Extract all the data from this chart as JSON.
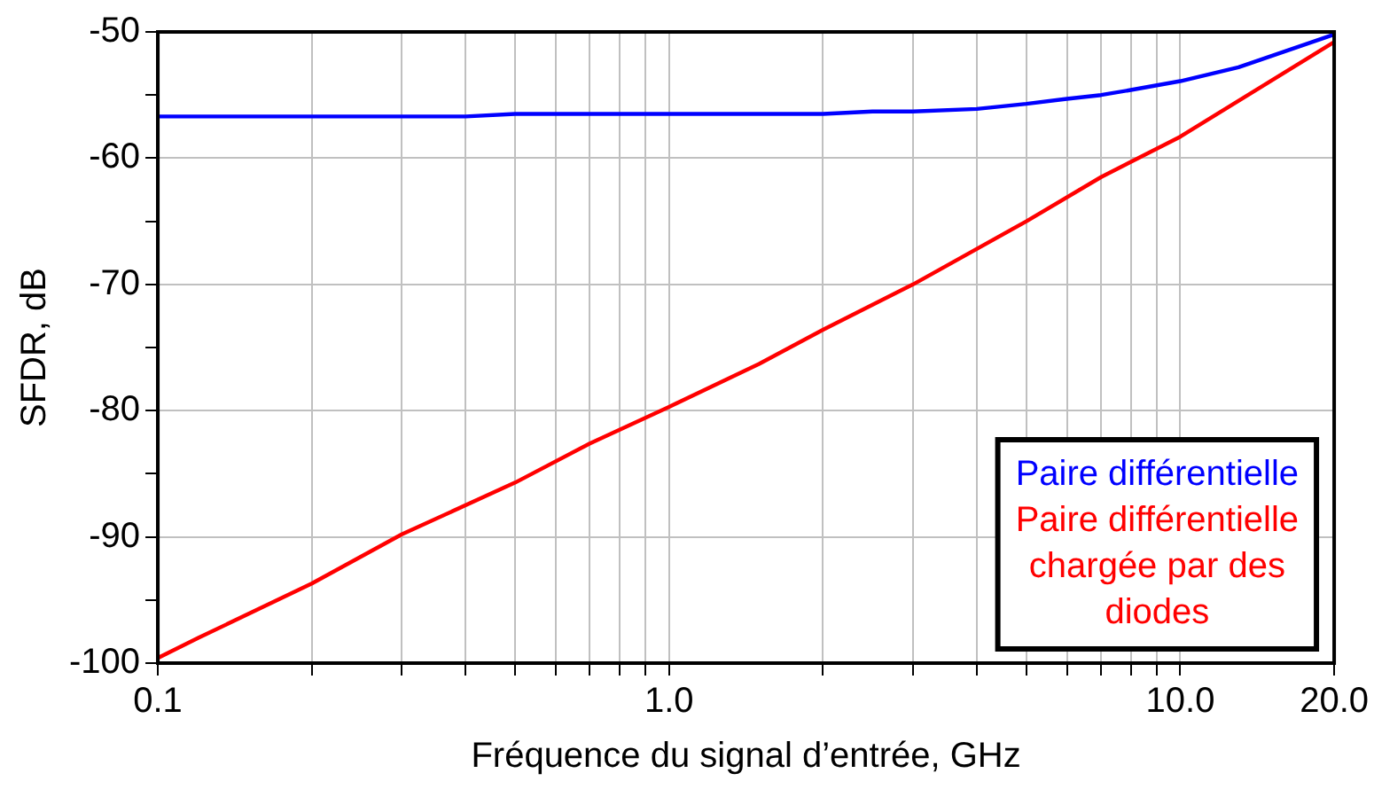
{
  "chart_data": {
    "type": "line",
    "xlabel": "Fréquence du signal d’entrée, GHz",
    "ylabel": "SFDR, dB",
    "log": "x",
    "grid": true,
    "legend": "bottom right",
    "marker": "none",
    "line_style": "solid",
    "xlim": [
      0.1,
      20
    ],
    "xticks": [
      0.1,
      {
        "value": 0.2,
        "label": null
      },
      {
        "value": 0.3,
        "label": null
      },
      {
        "value": 0.4,
        "label": null
      },
      {
        "value": 0.5,
        "label": null
      },
      {
        "value": 0.6,
        "label": null
      },
      {
        "value": 0.7,
        "label": null
      },
      {
        "value": 0.8,
        "label": null
      },
      {
        "value": 0.9,
        "label": null
      },
      {
        "value": 1,
        "label": "1.0"
      },
      {
        "value": 2,
        "label": null
      },
      {
        "value": 3,
        "label": null
      },
      {
        "value": 4,
        "label": null
      },
      {
        "value": 5,
        "label": null
      },
      {
        "value": 6,
        "label": null
      },
      {
        "value": 7,
        "label": null
      },
      {
        "value": 8,
        "label": null
      },
      {
        "value": 9,
        "label": null
      },
      {
        "value": 10,
        "label": "10.0"
      },
      {
        "value": 20,
        "label": "20.0"
      }
    ],
    "ylim": [
      -100,
      -50
    ],
    "yticks": [
      -100,
      {
        "value": -95,
        "label": null
      },
      -90,
      {
        "value": -85,
        "label": null
      },
      -80,
      {
        "value": -75,
        "label": null
      },
      -70,
      {
        "value": -65,
        "label": null
      },
      -60,
      {
        "value": -55,
        "label": null
      },
      -50
    ],
    "series": [
      {
        "name": "Paire différentielle",
        "color": "#0000ff",
        "x": [
          0.1,
          0.2,
          0.4,
          0.5,
          1,
          2,
          2.5,
          3,
          4,
          5,
          6,
          7,
          8,
          10,
          13,
          20
        ],
        "values": [
          -56.7,
          -56.7,
          -56.7,
          -56.5,
          -56.5,
          -56.5,
          -56.3,
          -56.3,
          -56.1,
          -55.7,
          -55.3,
          -55,
          -54.6,
          -53.9,
          -52.8,
          -50.2
        ]
      },
      {
        "name": "Paire différentielle chargée par des diodes",
        "color": "#ff0000",
        "x": [
          0.1,
          0.12,
          0.2,
          0.3,
          0.5,
          0.7,
          1,
          1.5,
          2,
          3,
          5,
          7,
          10,
          20
        ],
        "values": [
          -99.6,
          -98,
          -93.7,
          -89.8,
          -85.7,
          -82.6,
          -79.7,
          -76.3,
          -73.6,
          -70,
          -65,
          -61.5,
          -58.3,
          -50.8
        ]
      }
    ]
  }
}
